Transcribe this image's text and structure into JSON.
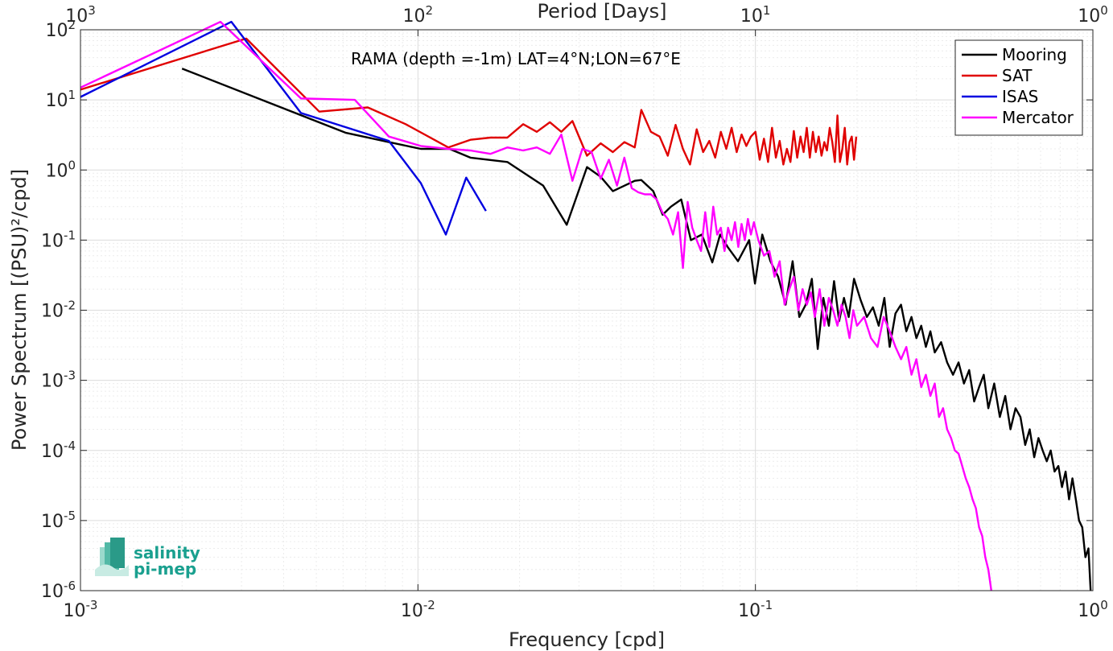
{
  "chart_data": {
    "type": "line",
    "title": "RAMA (depth =-1m) LAT=4°N;LON=67°E",
    "xlabel": "Frequency [cpd]",
    "ylabel": "Power Spectrum [(PSU)²/cpd]",
    "top_xlabel": "Period [Days]",
    "x_scale": "log",
    "y_scale": "log",
    "xlim": [
      0.001,
      1
    ],
    "ylim": [
      1e-06,
      100
    ],
    "grid": true,
    "legend_position": "top-right",
    "x_ticks": [
      {
        "value": 0.001,
        "base": "10",
        "exp": "-3"
      },
      {
        "value": 0.01,
        "base": "10",
        "exp": "-2"
      },
      {
        "value": 0.1,
        "base": "10",
        "exp": "-1"
      },
      {
        "value": 1,
        "base": "10",
        "exp": "0"
      }
    ],
    "top_ticks": [
      {
        "value": 0.001,
        "base": "10",
        "exp": "3"
      },
      {
        "value": 0.01,
        "base": "10",
        "exp": "2"
      },
      {
        "value": 0.1,
        "base": "10",
        "exp": "1"
      },
      {
        "value": 1,
        "base": "10",
        "exp": "0"
      }
    ],
    "y_ticks": [
      {
        "value": 100,
        "base": "10",
        "exp": "2"
      },
      {
        "value": 10,
        "base": "10",
        "exp": "1"
      },
      {
        "value": 1,
        "base": "10",
        "exp": "0"
      },
      {
        "value": 0.1,
        "base": "10",
        "exp": "-1"
      },
      {
        "value": 0.01,
        "base": "10",
        "exp": "-2"
      },
      {
        "value": 0.001,
        "base": "10",
        "exp": "-3"
      },
      {
        "value": 0.0001,
        "base": "10",
        "exp": "-4"
      },
      {
        "value": 1e-05,
        "base": "10",
        "exp": "-5"
      },
      {
        "value": 1e-06,
        "base": "10",
        "exp": "-6"
      }
    ],
    "series": [
      {
        "name": "Mooring",
        "color": "#000000",
        "x": [
          0.002,
          0.0061,
          0.0082,
          0.0102,
          0.0124,
          0.0143,
          0.0184,
          0.0235,
          0.0276,
          0.0317,
          0.0348,
          0.0378,
          0.0439,
          0.0459,
          0.0498,
          0.0531,
          0.0562,
          0.0603,
          0.0644,
          0.0694,
          0.0745,
          0.0786,
          0.0827,
          0.0888,
          0.0958,
          0.0997,
          0.1048,
          0.1108,
          0.1168,
          0.1229,
          0.1289,
          0.1349,
          0.141,
          0.147,
          0.153,
          0.159,
          0.165,
          0.171,
          0.177,
          0.183,
          0.189,
          0.196,
          0.205,
          0.214,
          0.223,
          0.232,
          0.241,
          0.25,
          0.26,
          0.27,
          0.28,
          0.29,
          0.3,
          0.31,
          0.32,
          0.33,
          0.34,
          0.355,
          0.37,
          0.385,
          0.4,
          0.415,
          0.43,
          0.445,
          0.46,
          0.475,
          0.49,
          0.51,
          0.53,
          0.55,
          0.57,
          0.59,
          0.61,
          0.63,
          0.65,
          0.67,
          0.69,
          0.71,
          0.73,
          0.75,
          0.77,
          0.79,
          0.81,
          0.83,
          0.85,
          0.87,
          0.89,
          0.91,
          0.93,
          0.95,
          0.97,
          0.985
        ],
        "y": [
          28,
          3.4,
          2.5,
          2.0,
          2.0,
          1.5,
          1.3,
          0.6,
          0.165,
          1.1,
          0.8,
          0.5,
          0.7,
          0.72,
          0.5,
          0.23,
          0.3,
          0.38,
          0.1,
          0.12,
          0.048,
          0.12,
          0.08,
          0.05,
          0.1,
          0.024,
          0.12,
          0.05,
          0.03,
          0.012,
          0.05,
          0.008,
          0.012,
          0.028,
          0.0028,
          0.015,
          0.006,
          0.026,
          0.007,
          0.015,
          0.008,
          0.028,
          0.014,
          0.008,
          0.011,
          0.006,
          0.015,
          0.003,
          0.009,
          0.012,
          0.005,
          0.008,
          0.004,
          0.006,
          0.003,
          0.005,
          0.0025,
          0.0035,
          0.0018,
          0.0012,
          0.0018,
          0.0009,
          0.0014,
          0.0005,
          0.0008,
          0.0012,
          0.0004,
          0.0009,
          0.0003,
          0.0006,
          0.0002,
          0.0004,
          0.0003,
          0.00012,
          0.0002,
          8e-05,
          0.00015,
          0.0001,
          7e-05,
          0.0001,
          5e-05,
          6e-05,
          3e-05,
          5e-05,
          2e-05,
          4e-05,
          2e-05,
          1e-05,
          8e-06,
          3e-06,
          4e-06,
          1e-06
        ]
      },
      {
        "name": "SAT",
        "color": "#e00000",
        "x": [
          0.001,
          0.0031,
          0.0051,
          0.0071,
          0.0092,
          0.0123,
          0.0143,
          0.0164,
          0.0184,
          0.0205,
          0.0225,
          0.0246,
          0.0266,
          0.0287,
          0.0317,
          0.0348,
          0.0378,
          0.0409,
          0.0439,
          0.0459,
          0.049,
          0.052,
          0.055,
          0.058,
          0.061,
          0.064,
          0.067,
          0.07,
          0.073,
          0.076,
          0.079,
          0.082,
          0.085,
          0.088,
          0.091,
          0.094,
          0.097,
          0.1,
          0.103,
          0.106,
          0.109,
          0.112,
          0.115,
          0.118,
          0.121,
          0.124,
          0.127,
          0.13,
          0.133,
          0.136,
          0.139,
          0.142,
          0.145,
          0.148,
          0.151,
          0.154,
          0.157,
          0.16,
          0.163,
          0.166,
          0.169,
          0.172,
          0.175,
          0.178,
          0.181,
          0.184,
          0.187,
          0.19,
          0.193,
          0.196,
          0.199
        ],
        "y": [
          14,
          75,
          6.8,
          7.8,
          4.5,
          2.1,
          2.7,
          2.9,
          2.9,
          4.5,
          3.5,
          4.8,
          3.5,
          5.0,
          1.6,
          2.4,
          1.8,
          2.5,
          2.1,
          7.2,
          3.5,
          3.0,
          1.6,
          4.4,
          2.0,
          1.2,
          3.8,
          1.8,
          2.6,
          1.5,
          3.5,
          2.0,
          4.0,
          1.8,
          3.2,
          2.2,
          3.0,
          3.5,
          1.4,
          2.8,
          1.3,
          4.0,
          1.5,
          2.6,
          1.2,
          2.0,
          1.3,
          3.6,
          1.5,
          3.0,
          1.8,
          4.0,
          1.5,
          3.5,
          1.8,
          3.0,
          1.6,
          2.5,
          1.9,
          4.0,
          2.5,
          1.3,
          6.0,
          1.3,
          2.0,
          4.0,
          1.2,
          2.5,
          3.0,
          1.4,
          3.0
        ]
      },
      {
        "name": "ISAS",
        "color": "#0000e0",
        "x": [
          0.001,
          0.0028,
          0.0045,
          0.0082,
          0.0102,
          0.0121,
          0.0139,
          0.0159
        ],
        "y": [
          11,
          130,
          6.5,
          2.6,
          0.65,
          0.12,
          0.78,
          0.26
        ]
      },
      {
        "name": "Mercator",
        "color": "#ff00ff",
        "x": [
          0.001,
          0.0026,
          0.0045,
          0.0065,
          0.0082,
          0.0102,
          0.0123,
          0.0143,
          0.0164,
          0.0184,
          0.0205,
          0.0225,
          0.0246,
          0.0266,
          0.0287,
          0.0307,
          0.0327,
          0.0348,
          0.0368,
          0.0389,
          0.0409,
          0.043,
          0.045,
          0.047,
          0.049,
          0.051,
          0.053,
          0.055,
          0.057,
          0.059,
          0.061,
          0.063,
          0.065,
          0.067,
          0.069,
          0.071,
          0.073,
          0.075,
          0.077,
          0.079,
          0.081,
          0.083,
          0.085,
          0.087,
          0.089,
          0.091,
          0.093,
          0.095,
          0.097,
          0.099,
          0.102,
          0.106,
          0.11,
          0.114,
          0.118,
          0.122,
          0.126,
          0.13,
          0.134,
          0.138,
          0.142,
          0.146,
          0.15,
          0.155,
          0.16,
          0.165,
          0.17,
          0.175,
          0.18,
          0.185,
          0.19,
          0.195,
          0.2,
          0.21,
          0.22,
          0.23,
          0.24,
          0.25,
          0.26,
          0.27,
          0.28,
          0.29,
          0.3,
          0.31,
          0.32,
          0.33,
          0.34,
          0.35,
          0.36,
          0.37,
          0.38,
          0.39,
          0.4,
          0.41,
          0.42,
          0.43,
          0.44,
          0.45,
          0.46,
          0.47,
          0.48,
          0.49,
          0.5
        ],
        "y": [
          15,
          130,
          10.5,
          10.0,
          3.0,
          2.2,
          2.0,
          1.9,
          1.7,
          2.1,
          1.9,
          2.1,
          1.7,
          3.2,
          0.7,
          2.0,
          1.8,
          0.75,
          1.4,
          0.6,
          1.5,
          0.55,
          0.48,
          0.45,
          0.45,
          0.38,
          0.25,
          0.2,
          0.12,
          0.25,
          0.04,
          0.35,
          0.15,
          0.1,
          0.07,
          0.25,
          0.08,
          0.3,
          0.12,
          0.15,
          0.07,
          0.15,
          0.1,
          0.18,
          0.08,
          0.17,
          0.1,
          0.2,
          0.12,
          0.18,
          0.1,
          0.06,
          0.07,
          0.03,
          0.05,
          0.012,
          0.02,
          0.03,
          0.01,
          0.02,
          0.012,
          0.018,
          0.008,
          0.02,
          0.006,
          0.015,
          0.01,
          0.006,
          0.012,
          0.008,
          0.004,
          0.01,
          0.006,
          0.008,
          0.004,
          0.003,
          0.008,
          0.005,
          0.003,
          0.002,
          0.003,
          0.0012,
          0.002,
          0.0008,
          0.0012,
          0.0006,
          0.0009,
          0.0003,
          0.0004,
          0.0002,
          0.00015,
          0.0001,
          9e-05,
          6e-05,
          4e-05,
          3e-05,
          2e-05,
          1.5e-05,
          8e-06,
          6e-06,
          3e-06,
          2e-06,
          1e-06
        ]
      }
    ]
  },
  "logo": {
    "line1": "salinity",
    "line2": "pi-mep",
    "color": "#1aa08f"
  }
}
